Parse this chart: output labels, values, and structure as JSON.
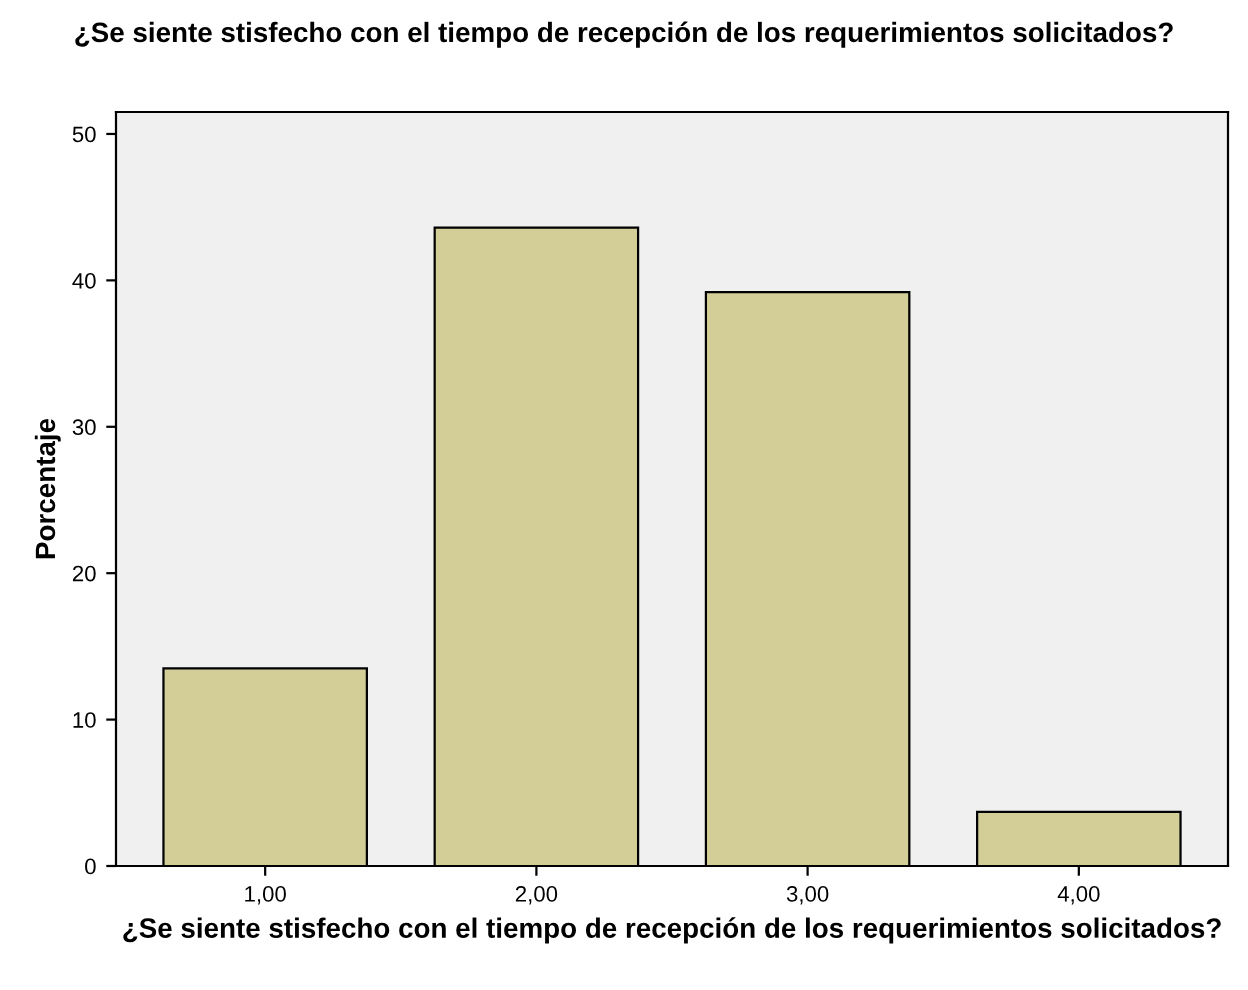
{
  "chart_data": {
    "type": "bar",
    "title": "¿Se siente stisfecho con el tiempo de recepción de los requerimientos solicitados?",
    "xlabel": "¿Se siente stisfecho con el tiempo de recepción de los requerimientos solicitados?",
    "ylabel": "Porcentaje",
    "categories": [
      "1,00",
      "2,00",
      "3,00",
      "4,00"
    ],
    "values": [
      13.5,
      43.6,
      39.2,
      3.7
    ],
    "color": "#d3ce97",
    "ylim": [
      0,
      51.5
    ],
    "yticks": [
      0,
      10,
      20,
      30,
      40,
      50
    ],
    "grid": false
  }
}
